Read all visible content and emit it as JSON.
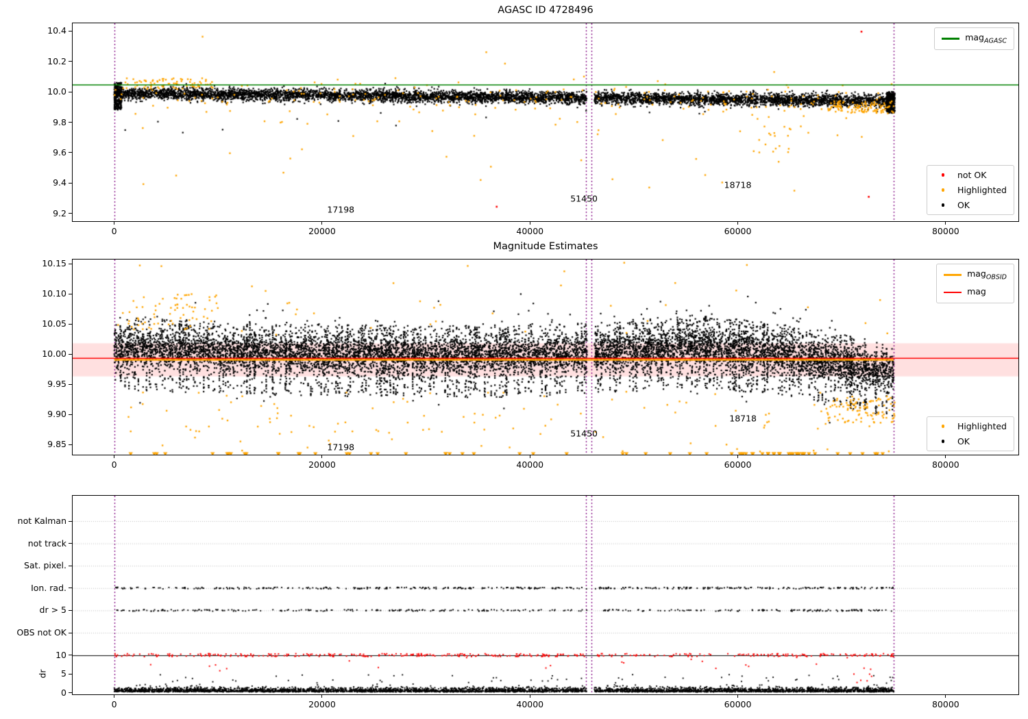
{
  "figure": {
    "background": "#ffffff"
  },
  "colors": {
    "ok": "#000000",
    "highlighted": "#FFA500",
    "not_ok": "#FF0000",
    "agasc_line": "#008000",
    "obsid_line": "#FFA500",
    "mag_line": "#FF0000",
    "band_fill": "rgba(255,0,0,0.12)",
    "vline": "#800080",
    "grid": "#bbbbbb",
    "axis": "#000000"
  },
  "chart_data": [
    {
      "type": "scatter",
      "title": "AGASC ID 4728496",
      "xlim": [
        -4000,
        87000
      ],
      "ylim": [
        9.15,
        10.45
      ],
      "xticks": [
        0,
        20000,
        40000,
        60000,
        80000
      ],
      "xtick_labels": [
        "0",
        "20000",
        "40000",
        "60000",
        "80000"
      ],
      "yticks": [
        9.2,
        9.4,
        9.6,
        9.8,
        10.0,
        10.2,
        10.4
      ],
      "ytick_labels": [
        "9.2",
        "9.4",
        "9.6",
        "9.8",
        "10.0",
        "10.2",
        "10.4"
      ],
      "vlines": [
        0,
        45400,
        45900,
        75000
      ],
      "hlines": [
        {
          "y": 10.045,
          "color": "#008000",
          "width": 1.6,
          "x": [
            -4000,
            87000
          ]
        }
      ],
      "xgap": [
        45500,
        46200
      ],
      "line_legend": [
        {
          "text": "mag",
          "sub": "AGASC",
          "color": "#008000"
        }
      ],
      "marker_legend": [
        {
          "label": "not OK",
          "color": "#FF0000"
        },
        {
          "label": "Highlighted",
          "color": "#FFA500"
        },
        {
          "label": "OK",
          "color": "#000000"
        }
      ],
      "annotations": [
        {
          "text": "17198",
          "x": 21800,
          "y": 9.227
        },
        {
          "text": "51450",
          "x": 45200,
          "y": 9.3
        },
        {
          "text": "18718",
          "x": 60000,
          "y": 9.39
        }
      ],
      "series": [
        {
          "name": "OK",
          "color": "#000000",
          "marker": "dot",
          "size": 2.2,
          "clusters": [
            {
              "n": 6500,
              "x": [
                0,
                75000
              ],
              "trend": [
                [
                  0,
                  9.99
                ],
                [
                  75000,
                  9.94
                ]
              ],
              "sigma": 0.02
            },
            {
              "n": 260,
              "x": [
                0,
                700
              ],
              "yuniform": [
                9.88,
                10.06
              ]
            },
            {
              "n": 300,
              "x": [
                74300,
                75100
              ],
              "yuniform": [
                9.86,
                10.0
              ]
            },
            {
              "n": 14,
              "x": [
                500,
                74000
              ],
              "yuniform": [
                9.72,
                9.9
              ]
            }
          ]
        },
        {
          "name": "Highlighted",
          "color": "#FFA500",
          "marker": "dot",
          "size": 2.4,
          "clusters": [
            {
              "n": 200,
              "x": [
                0,
                75000
              ],
              "trend": [
                [
                  0,
                  9.99
                ],
                [
                  75000,
                  9.94
                ]
              ],
              "sigma": 0.05
            },
            {
              "n": 70,
              "x": [
                300,
                9500
              ],
              "yuniform": [
                10.02,
                10.09
              ]
            },
            {
              "n": 48,
              "x": [
                500,
                75000
              ],
              "yuniform": [
                9.33,
                9.9
              ]
            },
            {
              "n": 20,
              "x": [
                60000,
                67000
              ],
              "yuniform": [
                9.6,
                9.85
              ]
            },
            {
              "n": 110,
              "x": [
                68500,
                75100
              ],
              "yuniform": [
                9.86,
                9.94
              ]
            },
            {
              "points": [
                [
                  8500,
                  10.362
                ],
                [
                  35800,
                  10.26
                ],
                [
                  37600,
                  10.185
                ],
                [
                  45200,
                  10.1
                ],
                [
                  63500,
                  10.13
                ],
                [
                  52300,
                  10.07
                ],
                [
                  21500,
                  10.08
                ],
                [
                  74800,
                  10.05
                ]
              ]
            }
          ]
        },
        {
          "name": "not OK",
          "color": "#FF0000",
          "marker": "dot",
          "size": 2.6,
          "clusters": [
            {
              "points": [
                [
                  36800,
                  9.245
                ],
                [
                  71900,
                  10.395
                ],
                [
                  72600,
                  9.31
                ]
              ]
            }
          ]
        }
      ]
    },
    {
      "type": "scatter",
      "title": "Magnitude Estimates",
      "xlim": [
        -4000,
        87000
      ],
      "ylim": [
        9.833,
        10.157
      ],
      "xticks": [
        0,
        20000,
        40000,
        60000,
        80000
      ],
      "xtick_labels": [
        "0",
        "20000",
        "40000",
        "60000",
        "80000"
      ],
      "yticks": [
        9.85,
        9.9,
        9.95,
        10.0,
        10.05,
        10.1,
        10.15
      ],
      "ytick_labels": [
        "9.85",
        "9.90",
        "9.95",
        "10.00",
        "10.05",
        "10.10",
        "10.15"
      ],
      "vlines": [
        0,
        45400,
        45900,
        75000
      ],
      "band": {
        "y0": 9.963,
        "y1": 10.018,
        "color": "rgba(255,0,0,0.12)"
      },
      "hlines": [
        {
          "y": 9.9905,
          "color": "#FFA500",
          "width": 2.5,
          "x": [
            0,
            75000
          ]
        },
        {
          "y": 9.993,
          "color": "#FF0000",
          "width": 1.5,
          "x": [
            -4000,
            87000
          ]
        }
      ],
      "xgap": [
        45500,
        46200
      ],
      "line_legend": [
        {
          "text": "mag",
          "sub": "OBSID",
          "color": "#FFA500"
        },
        {
          "text": "mag",
          "sub": "",
          "color": "#FF0000"
        }
      ],
      "marker_legend": [
        {
          "label": "Highlighted",
          "color": "#FFA500"
        },
        {
          "label": "OK",
          "color": "#000000"
        }
      ],
      "annotations": [
        {
          "text": "17198",
          "x": 21800,
          "y": 9.846
        },
        {
          "text": "51450",
          "x": 45200,
          "y": 9.868
        },
        {
          "text": "18718",
          "x": 60500,
          "y": 9.893
        }
      ],
      "series": [
        {
          "name": "OK",
          "color": "#000000",
          "marker": "dot",
          "size": 2.2,
          "clusters": [
            {
              "n": 7000,
              "x": [
                0,
                75000
              ],
              "trend": [
                [
                  0,
                  10.01
                ],
                [
                  20000,
                  10.0
                ],
                [
                  40000,
                  9.998
                ],
                [
                  48000,
                  10.005
                ],
                [
                  56000,
                  10.015
                ],
                [
                  65000,
                  10.0
                ],
                [
                  75000,
                  9.965
                ]
              ],
              "sigma": 0.016
            },
            {
              "streaks": 380,
              "per": 9,
              "x": [
                0,
                75000
              ],
              "trend": [
                [
                  0,
                  10.01
                ],
                [
                  20000,
                  10.0
                ],
                [
                  40000,
                  9.998
                ],
                [
                  48000,
                  10.005
                ],
                [
                  56000,
                  10.015
                ],
                [
                  65000,
                  10.0
                ],
                [
                  75000,
                  9.965
                ]
              ],
              "yspan": [
                -0.07,
                0.05
              ]
            },
            {
              "n": 700,
              "x": [
                0,
                75000
              ],
              "trend": [
                [
                  0,
                  10.01
                ],
                [
                  20000,
                  10.0
                ],
                [
                  40000,
                  9.998
                ],
                [
                  48000,
                  10.005
                ],
                [
                  56000,
                  10.015
                ],
                [
                  65000,
                  10.0
                ],
                [
                  75000,
                  9.965
                ]
              ],
              "sigma": 0.034
            }
          ]
        },
        {
          "name": "Highlighted",
          "color": "#FFA500",
          "marker": "dot",
          "size": 2.4,
          "clusters": [
            {
              "n": 80,
              "x": [
                500,
                75000
              ],
              "yuniform": [
                9.87,
                9.94
              ]
            },
            {
              "n": 70,
              "x": [
                300,
                10000
              ],
              "yuniform": [
                10.04,
                10.1
              ]
            },
            {
              "n": 100,
              "x": [
                68500,
                75100
              ],
              "yuniform": [
                9.885,
                9.93
              ]
            },
            {
              "n": 25,
              "x": [
                500,
                75000
              ],
              "yuniform": [
                10.03,
                10.09
              ]
            },
            {
              "n": 12,
              "x": [
                500,
                75000
              ],
              "yuniform": [
                10.1,
                10.155
              ]
            },
            {
              "n": 30,
              "x": [
                500,
                75000
              ],
              "yuniform": [
                9.836,
                9.875
              ]
            }
          ]
        },
        {
          "name": "Highlighted clipped",
          "color": "#FFA500",
          "marker": "tri",
          "size": 3.2,
          "clusters": [
            {
              "n": 45,
              "x": [
                1500,
                75000
              ],
              "yconst": 9.8345
            },
            {
              "n": 22,
              "x": [
                59000,
                67500
              ],
              "yconst": 9.8345
            }
          ]
        }
      ]
    },
    {
      "type": "scatter",
      "title": "",
      "xlim": [
        -4000,
        87000
      ],
      "xticks": [
        0,
        20000,
        40000,
        60000,
        80000
      ],
      "xtick_labels": [
        "0",
        "20000",
        "40000",
        "60000",
        "80000"
      ],
      "categories": [
        "not Kalman",
        "not track",
        "Sat. pixel.",
        "Ion. rad.",
        "dr > 5",
        "OBS not OK"
      ],
      "dr_ticks": [
        10,
        5,
        0
      ],
      "dr_tick_labels": [
        "10",
        "5",
        "0"
      ],
      "dr_label": "dr",
      "dr_hline": 10,
      "vlines": [
        0,
        45400,
        45900,
        75000
      ],
      "xgap": [
        45500,
        46200
      ],
      "series": [
        {
          "name": "Ion. rad. flags",
          "color": "#000000",
          "marker": "dot",
          "size": 1.9,
          "clusters": [
            {
              "n": 420,
              "x": [
                0,
                75000
              ],
              "row": 3
            }
          ]
        },
        {
          "name": "dr > 5 flags",
          "color": "#000000",
          "marker": "dot",
          "size": 1.9,
          "clusters": [
            {
              "n": 330,
              "x": [
                0,
                75000
              ],
              "row": 4
            }
          ]
        },
        {
          "name": "dr not OK",
          "color": "#FF0000",
          "marker": "dot",
          "size": 2.0,
          "clusters": [
            {
              "n": 380,
              "x": [
                0,
                75000
              ],
              "drUniform": [
                9.55,
                10.35
              ]
            },
            {
              "n": 20,
              "x": [
                2000,
                74000
              ],
              "drUniform": [
                5.5,
                9.4
              ]
            },
            {
              "n": 8,
              "x": [
                71000,
                73500
              ],
              "drUniform": [
                2.5,
                7.0
              ]
            }
          ]
        },
        {
          "name": "dr OK",
          "color": "#000000",
          "marker": "dot",
          "size": 1.9,
          "clusters": [
            {
              "n": 4500,
              "x": [
                0,
                75000
              ],
              "drGauss": 0.55
            },
            {
              "n": 80,
              "x": [
                0,
                75000
              ],
              "drUniform": [
                1.3,
                4.8
              ]
            }
          ]
        }
      ]
    }
  ]
}
